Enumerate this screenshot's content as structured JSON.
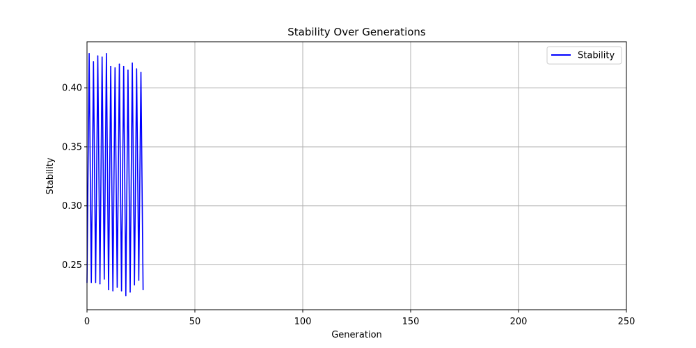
{
  "chart_data": {
    "type": "line",
    "title": "Stability Over Generations",
    "xlabel": "Generation",
    "ylabel": "Stability",
    "xlim": [
      0,
      250
    ],
    "ylim": [
      0.212,
      0.439
    ],
    "xticks": [
      0,
      50,
      100,
      150,
      200,
      250
    ],
    "yticks": [
      0.25,
      0.3,
      0.35,
      0.4
    ],
    "grid": true,
    "legend": {
      "position": "top-right",
      "entries": [
        "Stability"
      ]
    },
    "series": [
      {
        "name": "Stability",
        "color": "#0000ff",
        "x": [
          0,
          1,
          2,
          3,
          4,
          5,
          6,
          7,
          8,
          9,
          10,
          11,
          12,
          13,
          14,
          15,
          16,
          17,
          18,
          19,
          20,
          21,
          22,
          23,
          24,
          25,
          26
        ],
        "y": [
          0.235,
          0.429,
          0.235,
          0.422,
          0.235,
          0.427,
          0.234,
          0.426,
          0.238,
          0.429,
          0.229,
          0.418,
          0.228,
          0.417,
          0.231,
          0.42,
          0.228,
          0.418,
          0.224,
          0.415,
          0.227,
          0.421,
          0.233,
          0.416,
          0.237,
          0.413,
          0.229
        ]
      }
    ]
  }
}
